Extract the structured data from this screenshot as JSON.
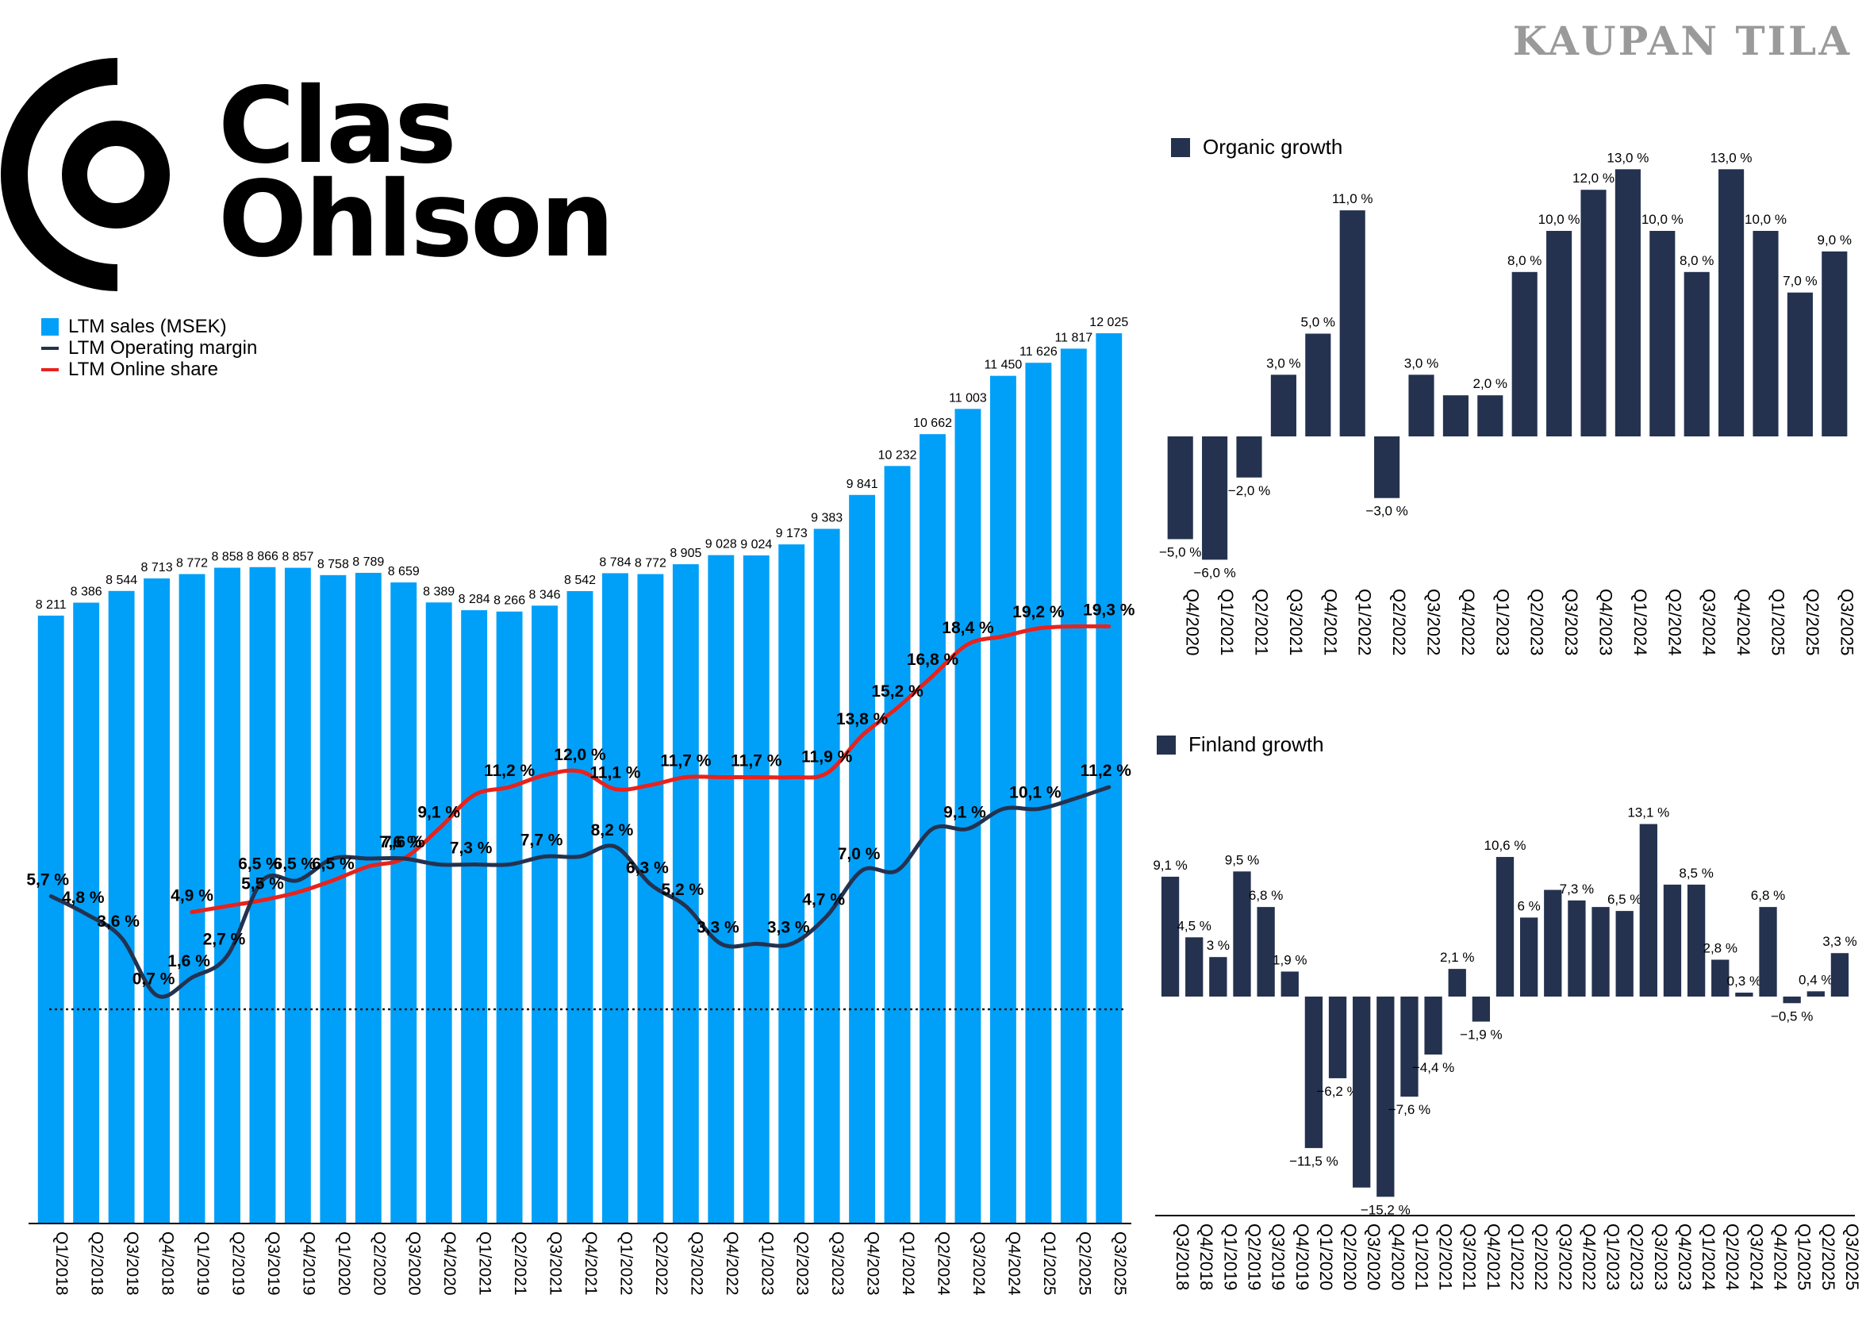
{
  "watermark": "KAUPAN TILA",
  "brand": {
    "line1": "Clas",
    "line2": "Ohlson"
  },
  "colors": {
    "bars": "#00a0f8",
    "margin_line": "#24324f",
    "online_line": "#e8221c",
    "dark_bars": "#24324f"
  },
  "chart_data": [
    {
      "type": "bar",
      "title": "",
      "legend": [
        "LTM sales (MSEK)",
        "LTM Operating margin",
        "LTM Online share"
      ],
      "legend_position": "top-left",
      "categories": [
        "Q1/2018",
        "Q2/2018",
        "Q3/2018",
        "Q4/2018",
        "Q1/2019",
        "Q2/2019",
        "Q3/2019",
        "Q4/2019",
        "Q1/2020",
        "Q2/2020",
        "Q3/2020",
        "Q4/2020",
        "Q1/2021",
        "Q2/2021",
        "Q3/2021",
        "Q4/2021",
        "Q1/2022",
        "Q2/2022",
        "Q3/2022",
        "Q4/2022",
        "Q1/2023",
        "Q2/2023",
        "Q3/2023",
        "Q4/2023",
        "Q1/2024",
        "Q2/2024",
        "Q3/2024",
        "Q4/2024",
        "Q1/2025",
        "Q2/2025",
        "Q3/2025"
      ],
      "series": [
        {
          "name": "LTM sales (MSEK)",
          "type": "bar",
          "values": [
            8211,
            8386,
            8544,
            8713,
            8772,
            8858,
            8866,
            8857,
            8758,
            8789,
            8659,
            8389,
            8284,
            8266,
            8346,
            8542,
            8784,
            8772,
            8905,
            9028,
            9024,
            9173,
            9383,
            9841,
            10232,
            10662,
            11003,
            11450,
            11626,
            11817,
            12025
          ],
          "labels": [
            "8 211",
            "8 386",
            "8 544",
            "8 713",
            "8 772",
            "8 858",
            "8 866",
            "8 857",
            "8 758",
            "8 789",
            "8 659",
            "8 389",
            "8 284",
            "8 266",
            "8 346",
            "8 542",
            "8 784",
            "8 772",
            "8 905",
            "9 028",
            "9 024",
            "9 173",
            "9 383",
            "9 841",
            "10 232",
            "10 662",
            "11 003",
            "11 450",
            "11 626",
            "11 817",
            "12 025"
          ]
        },
        {
          "name": "LTM Operating margin",
          "type": "line",
          "values": [
            5.7,
            4.8,
            3.6,
            0.7,
            1.6,
            2.7,
            6.5,
            6.5,
            7.6,
            7.6,
            7.6,
            7.3,
            7.3,
            7.3,
            7.7,
            7.7,
            8.2,
            6.3,
            5.2,
            3.3,
            3.3,
            3.3,
            4.7,
            7.0,
            7.0,
            9.1,
            9.1,
            10.1,
            10.1,
            10.6,
            11.2
          ],
          "point_labels": [
            "5,7 %",
            "4,8 %",
            "3,6 %",
            "0,7 %",
            "1,6 %",
            "2,7 %",
            "6,5 %",
            "6,5 %",
            "",
            "",
            "7,6 %",
            "",
            "7,3 %",
            "",
            "7,7 %",
            "",
            "8,2 %",
            "6,3 %",
            "5,2 %",
            "3,3 %",
            "",
            "3,3 %",
            "4,7 %",
            "7,0 %",
            "",
            "",
            "9,1 %",
            "",
            "10,1 %",
            "",
            "11,2 %"
          ]
        },
        {
          "name": "LTM Online share",
          "type": "line",
          "values": [
            null,
            null,
            null,
            null,
            4.9,
            5.2,
            5.5,
            5.9,
            6.5,
            7.2,
            7.6,
            9.1,
            10.8,
            11.2,
            11.8,
            12.0,
            11.1,
            11.3,
            11.7,
            11.7,
            11.7,
            11.7,
            11.9,
            13.8,
            15.2,
            16.8,
            18.4,
            18.8,
            19.2,
            19.3,
            19.3
          ],
          "point_labels": [
            "",
            "",
            "",
            "",
            "4,9 %",
            "",
            "5,5 %",
            "",
            "6,5 %",
            "",
            "7,6 %",
            "9,1 %",
            "",
            "11,2 %",
            "",
            "12,0 %",
            "11,1 %",
            "",
            "11,7 %",
            "",
            "11,7 %",
            "",
            "11,9 %",
            "13,8 %",
            "15,2 %",
            "16,8 %",
            "18,4 %",
            "",
            "19,2 %",
            "",
            "19,3 %"
          ]
        }
      ],
      "xlabel": "",
      "ylabel": "",
      "grid": false
    },
    {
      "type": "bar",
      "title": "",
      "legend": [
        "Organic growth"
      ],
      "legend_position": "top-left",
      "categories": [
        "Q4/2020",
        "Q1/2021",
        "Q2/2021",
        "Q3/2021",
        "Q4/2021",
        "Q1/2022",
        "Q2/2022",
        "Q3/2022",
        "Q4/2022",
        "Q1/2023",
        "Q2/2023",
        "Q3/2023",
        "Q4/2023",
        "Q1/2024",
        "Q2/2024",
        "Q3/2024",
        "Q4/2024",
        "Q1/2025",
        "Q2/2025",
        "Q3/2025"
      ],
      "values": [
        -5.0,
        -6.0,
        -2.0,
        3.0,
        5.0,
        11.0,
        -3.0,
        3.0,
        2.0,
        2.0,
        8.0,
        10.0,
        12.0,
        13.0,
        10.0,
        8.0,
        13.0,
        10.0,
        7.0,
        9.0
      ],
      "labels": [
        "−5,0 %",
        "−6,0 %",
        "−2,0 %",
        "3,0 %",
        "5,0 %",
        "11,0 %",
        "−3,0 %",
        "3,0 %",
        "",
        "2,0 %",
        "8,0 %",
        "10,0 %",
        "12,0 %",
        "13,0 %",
        "10,0 %",
        "8,0 %",
        "13,0 %",
        "10,0 %",
        "7,0 %",
        "9,0 %"
      ],
      "ylim": [
        -6.5,
        13.5
      ]
    },
    {
      "type": "bar",
      "title": "",
      "legend": [
        "Finland growth"
      ],
      "legend_position": "top-left",
      "categories": [
        "Q3/2018",
        "Q4/2018",
        "Q1/2019",
        "Q2/2019",
        "Q3/2019",
        "Q4/2019",
        "Q1/2020",
        "Q2/2020",
        "Q3/2020",
        "Q4/2020",
        "Q1/2021",
        "Q2/2021",
        "Q3/2021",
        "Q4/2021",
        "Q1/2022",
        "Q2/2022",
        "Q3/2022",
        "Q4/2022",
        "Q1/2023",
        "Q2/2023",
        "Q3/2023",
        "Q4/2023",
        "Q1/2024",
        "Q2/2024",
        "Q3/2024",
        "Q4/2024",
        "Q1/2025",
        "Q2/2025",
        "Q3/2025"
      ],
      "values": [
        9.1,
        4.5,
        3.0,
        9.5,
        6.8,
        1.9,
        -11.5,
        -6.2,
        -14.5,
        -15.2,
        -7.6,
        -4.4,
        2.1,
        -1.9,
        10.6,
        6.0,
        8.1,
        7.3,
        6.8,
        6.5,
        13.1,
        8.5,
        8.5,
        2.8,
        0.3,
        6.8,
        -0.5,
        0.4,
        3.3
      ],
      "labels": [
        "9,1 %",
        "4,5 %",
        "3 %",
        "9,5 %",
        "6,8 %",
        "1,9 %",
        "−11,5 %",
        "−6,2 %",
        "",
        "−15,2 %",
        "−7,6 %",
        "−4,4 %",
        "2,1 %",
        "−1,9 %",
        "10,6 %",
        "6 %",
        "",
        "7,3 %",
        "",
        "6,5 %",
        "13,1 %",
        "",
        "8,5 %",
        "2,8 %",
        "0,3 %",
        "6,8 %",
        "−0,5 %",
        "0,4 %",
        "3,3 %"
      ],
      "ylim": [
        -15.5,
        13.5
      ]
    }
  ]
}
